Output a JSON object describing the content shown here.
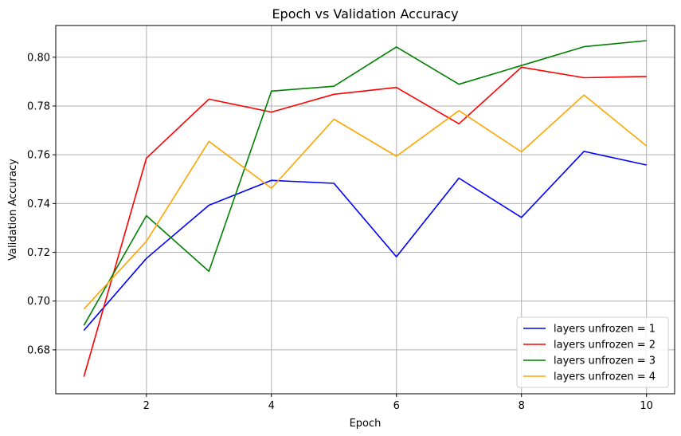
{
  "chart_data": {
    "type": "line",
    "title": "Epoch vs Validation Accuracy",
    "xlabel": "Epoch",
    "ylabel": "Validation Accuracy",
    "xlim": [
      0.55,
      10.45
    ],
    "ylim": [
      0.662,
      0.813
    ],
    "xticks": [
      2,
      4,
      6,
      8,
      10
    ],
    "yticks": [
      0.68,
      0.7,
      0.72,
      0.74,
      0.76,
      0.78,
      0.8
    ],
    "xtick_labels": [
      "2",
      "4",
      "6",
      "8",
      "10"
    ],
    "ytick_labels": [
      "0.68",
      "0.70",
      "0.72",
      "0.74",
      "0.76",
      "0.78",
      "0.80"
    ],
    "grid": true,
    "legend_position": "lower-right",
    "x": [
      1,
      2,
      3,
      4,
      5,
      6,
      7,
      8,
      9,
      10
    ],
    "series": [
      {
        "name": "layers unfrozen = 1",
        "color": "#0000ff",
        "values": [
          0.688,
          0.7175,
          0.7393,
          0.7495,
          0.7483,
          0.7182,
          0.7504,
          0.7343,
          0.7614,
          0.7558
        ]
      },
      {
        "name": "layers unfrozen = 2",
        "color": "#ff0000",
        "values": [
          0.669,
          0.7586,
          0.7828,
          0.7775,
          0.7848,
          0.7876,
          0.7727,
          0.7959,
          0.7916,
          0.7921
        ]
      },
      {
        "name": "layers unfrozen = 3",
        "color": "#008000",
        "values": [
          0.69,
          0.735,
          0.7122,
          0.7861,
          0.7881,
          0.8042,
          0.7889,
          0.7966,
          0.8043,
          0.8068
        ]
      },
      {
        "name": "layers unfrozen = 4",
        "color": "#ffa500",
        "values": [
          0.6967,
          0.7245,
          0.7655,
          0.7463,
          0.7746,
          0.7594,
          0.7781,
          0.7612,
          0.7845,
          0.7636
        ]
      }
    ]
  }
}
